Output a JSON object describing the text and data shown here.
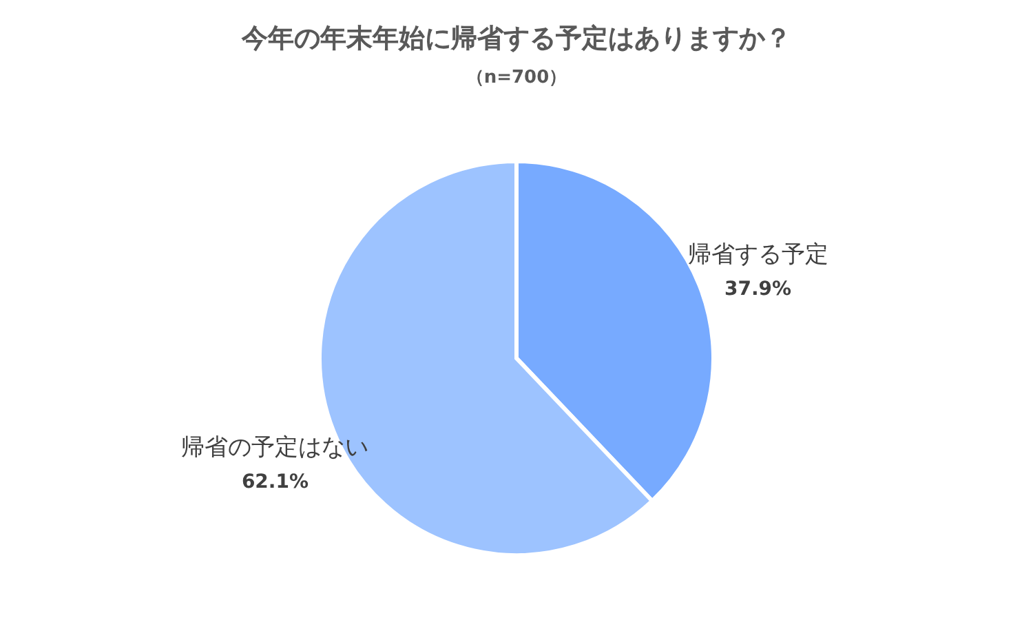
{
  "chart_data": {
    "type": "pie",
    "title": "今年の年末年始に帰省する予定はありますか？",
    "subtitle": "（n=700）",
    "categories": [
      "帰省する予定",
      "帰省の予定はない"
    ],
    "values": [
      37.9,
      62.1
    ],
    "colors": [
      "#77aaff",
      "#9dc3ff"
    ],
    "value_labels": [
      "37.9%",
      "62.1%"
    ]
  }
}
